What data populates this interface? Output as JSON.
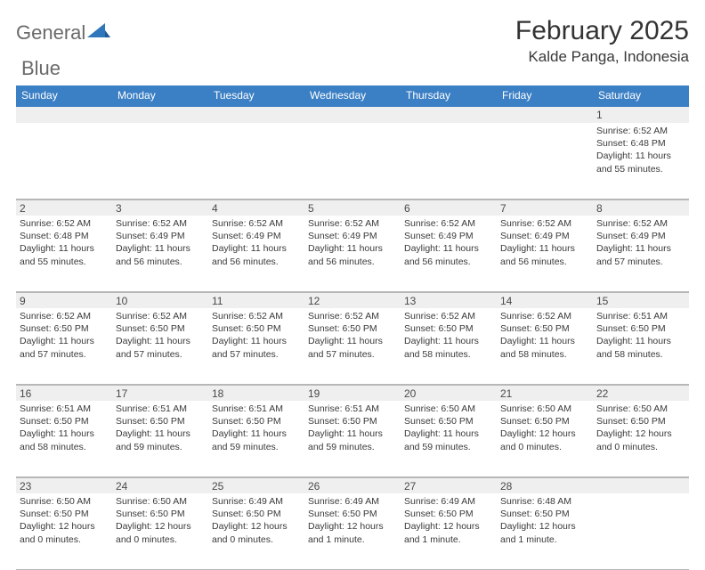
{
  "brand": {
    "word1": "General",
    "word2": "Blue"
  },
  "title": "February 2025",
  "location": "Kalde Panga, Indonesia",
  "colors": {
    "header_bar": "#3b7fc4",
    "band": "#efefef",
    "rule": "#b7b7b7",
    "text": "#3a3a3a",
    "title": "#333333",
    "brand_gray": "#6a6a6a",
    "brand_blue": "#2f76bb"
  },
  "weekdays": [
    "Sunday",
    "Monday",
    "Tuesday",
    "Wednesday",
    "Thursday",
    "Friday",
    "Saturday"
  ],
  "layout": {
    "columns": 7,
    "rows": 5,
    "first_day_column_index": 6,
    "days_in_month": 28
  },
  "days": [
    {
      "n": 1,
      "sunrise": "6:52 AM",
      "sunset": "6:48 PM",
      "daylight": "11 hours and 55 minutes."
    },
    {
      "n": 2,
      "sunrise": "6:52 AM",
      "sunset": "6:48 PM",
      "daylight": "11 hours and 55 minutes."
    },
    {
      "n": 3,
      "sunrise": "6:52 AM",
      "sunset": "6:49 PM",
      "daylight": "11 hours and 56 minutes."
    },
    {
      "n": 4,
      "sunrise": "6:52 AM",
      "sunset": "6:49 PM",
      "daylight": "11 hours and 56 minutes."
    },
    {
      "n": 5,
      "sunrise": "6:52 AM",
      "sunset": "6:49 PM",
      "daylight": "11 hours and 56 minutes."
    },
    {
      "n": 6,
      "sunrise": "6:52 AM",
      "sunset": "6:49 PM",
      "daylight": "11 hours and 56 minutes."
    },
    {
      "n": 7,
      "sunrise": "6:52 AM",
      "sunset": "6:49 PM",
      "daylight": "11 hours and 56 minutes."
    },
    {
      "n": 8,
      "sunrise": "6:52 AM",
      "sunset": "6:49 PM",
      "daylight": "11 hours and 57 minutes."
    },
    {
      "n": 9,
      "sunrise": "6:52 AM",
      "sunset": "6:50 PM",
      "daylight": "11 hours and 57 minutes."
    },
    {
      "n": 10,
      "sunrise": "6:52 AM",
      "sunset": "6:50 PM",
      "daylight": "11 hours and 57 minutes."
    },
    {
      "n": 11,
      "sunrise": "6:52 AM",
      "sunset": "6:50 PM",
      "daylight": "11 hours and 57 minutes."
    },
    {
      "n": 12,
      "sunrise": "6:52 AM",
      "sunset": "6:50 PM",
      "daylight": "11 hours and 57 minutes."
    },
    {
      "n": 13,
      "sunrise": "6:52 AM",
      "sunset": "6:50 PM",
      "daylight": "11 hours and 58 minutes."
    },
    {
      "n": 14,
      "sunrise": "6:52 AM",
      "sunset": "6:50 PM",
      "daylight": "11 hours and 58 minutes."
    },
    {
      "n": 15,
      "sunrise": "6:51 AM",
      "sunset": "6:50 PM",
      "daylight": "11 hours and 58 minutes."
    },
    {
      "n": 16,
      "sunrise": "6:51 AM",
      "sunset": "6:50 PM",
      "daylight": "11 hours and 58 minutes."
    },
    {
      "n": 17,
      "sunrise": "6:51 AM",
      "sunset": "6:50 PM",
      "daylight": "11 hours and 59 minutes."
    },
    {
      "n": 18,
      "sunrise": "6:51 AM",
      "sunset": "6:50 PM",
      "daylight": "11 hours and 59 minutes."
    },
    {
      "n": 19,
      "sunrise": "6:51 AM",
      "sunset": "6:50 PM",
      "daylight": "11 hours and 59 minutes."
    },
    {
      "n": 20,
      "sunrise": "6:50 AM",
      "sunset": "6:50 PM",
      "daylight": "11 hours and 59 minutes."
    },
    {
      "n": 21,
      "sunrise": "6:50 AM",
      "sunset": "6:50 PM",
      "daylight": "12 hours and 0 minutes."
    },
    {
      "n": 22,
      "sunrise": "6:50 AM",
      "sunset": "6:50 PM",
      "daylight": "12 hours and 0 minutes."
    },
    {
      "n": 23,
      "sunrise": "6:50 AM",
      "sunset": "6:50 PM",
      "daylight": "12 hours and 0 minutes."
    },
    {
      "n": 24,
      "sunrise": "6:50 AM",
      "sunset": "6:50 PM",
      "daylight": "12 hours and 0 minutes."
    },
    {
      "n": 25,
      "sunrise": "6:49 AM",
      "sunset": "6:50 PM",
      "daylight": "12 hours and 0 minutes."
    },
    {
      "n": 26,
      "sunrise": "6:49 AM",
      "sunset": "6:50 PM",
      "daylight": "12 hours and 1 minute."
    },
    {
      "n": 27,
      "sunrise": "6:49 AM",
      "sunset": "6:50 PM",
      "daylight": "12 hours and 1 minute."
    },
    {
      "n": 28,
      "sunrise": "6:48 AM",
      "sunset": "6:50 PM",
      "daylight": "12 hours and 1 minute."
    }
  ],
  "labels": {
    "sunrise": "Sunrise:",
    "sunset": "Sunset:",
    "daylight": "Daylight:"
  }
}
